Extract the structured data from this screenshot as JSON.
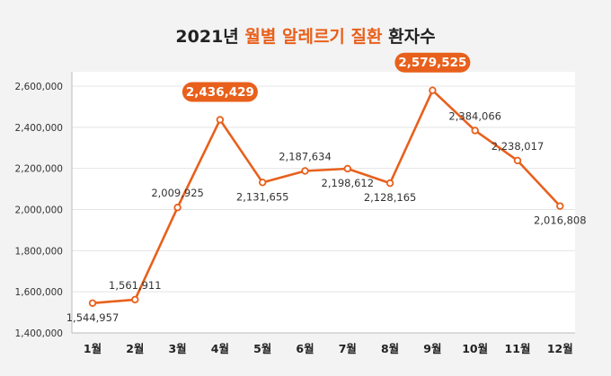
{
  "title": {
    "year_part": "2021년",
    "highlight_part": "월별 알레르기 질환",
    "tail_part": "환자수"
  },
  "colors": {
    "accent": "#e8601c",
    "text": "#222222",
    "grid": "#e4e4e4",
    "background": "#f3f3f3",
    "plot_bg": "#ffffff"
  },
  "chart_data": {
    "type": "line",
    "title": "2021년 월별 알레르기 질환 환자수",
    "xlabel": "",
    "ylabel": "",
    "categories": [
      "1월",
      "2월",
      "3월",
      "4월",
      "5월",
      "6월",
      "7월",
      "8월",
      "9월",
      "10월",
      "11월",
      "12월"
    ],
    "values": [
      1544957,
      1561911,
      2009925,
      2436429,
      2131655,
      2187634,
      2198612,
      2128165,
      2579525,
      2384066,
      2238017,
      2016808
    ],
    "value_labels": [
      "1,544,957",
      "1,561,911",
      "2,009,925",
      "2,436,429",
      "2,131,655",
      "2,187,634",
      "2,198,612",
      "2,128,165",
      "2,579,525",
      "2,384,066",
      "2,238,017",
      "2,016,808"
    ],
    "label_position": [
      "below",
      "above",
      "above",
      "badge",
      "below",
      "above",
      "below",
      "below",
      "badge",
      "above",
      "above",
      "below"
    ],
    "highlighted": [
      3,
      8
    ],
    "ylim": [
      1400000,
      2600000
    ],
    "yticks": [
      1400000,
      1600000,
      1800000,
      2000000,
      2200000,
      2400000,
      2600000
    ],
    "ytick_labels": [
      "1,400,000",
      "1,600,000",
      "1,800,000",
      "2,000,000",
      "2,200,000",
      "2,400,000",
      "2,600,000"
    ],
    "grid": true
  }
}
